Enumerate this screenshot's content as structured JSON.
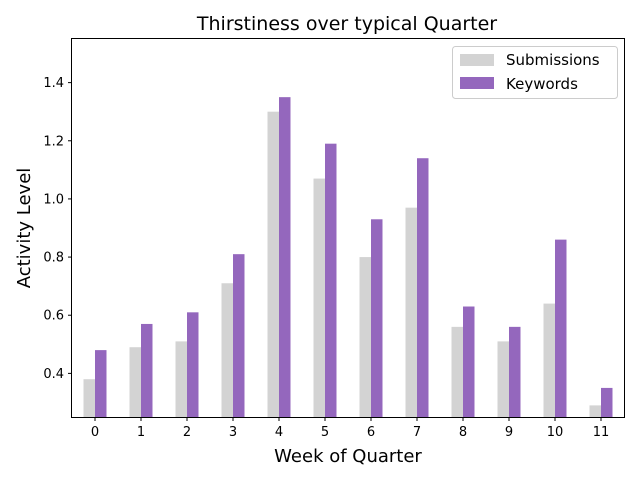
{
  "chart_data": {
    "type": "bar",
    "title": "Thirstiness over typical Quarter",
    "xlabel": "Week of Quarter",
    "ylabel": "Activity Level",
    "categories": [
      "0",
      "1",
      "2",
      "3",
      "4",
      "5",
      "6",
      "7",
      "8",
      "9",
      "10",
      "11"
    ],
    "series": [
      {
        "name": "Submissions",
        "color": "#d3d3d3",
        "values": [
          0.38,
          0.49,
          0.51,
          0.71,
          1.3,
          1.07,
          0.8,
          0.97,
          0.56,
          0.51,
          0.64,
          0.29
        ]
      },
      {
        "name": "Keywords",
        "color": "#9467bd",
        "values": [
          0.48,
          0.57,
          0.61,
          0.81,
          1.35,
          1.19,
          0.93,
          1.14,
          0.63,
          0.56,
          0.86,
          0.35
        ]
      }
    ],
    "ylim": [
      0.25,
      1.55
    ],
    "yticks": [
      "0.4",
      "0.6",
      "0.8",
      "1.0",
      "1.2",
      "1.4"
    ],
    "grid": false,
    "legend_position": "top-right"
  }
}
